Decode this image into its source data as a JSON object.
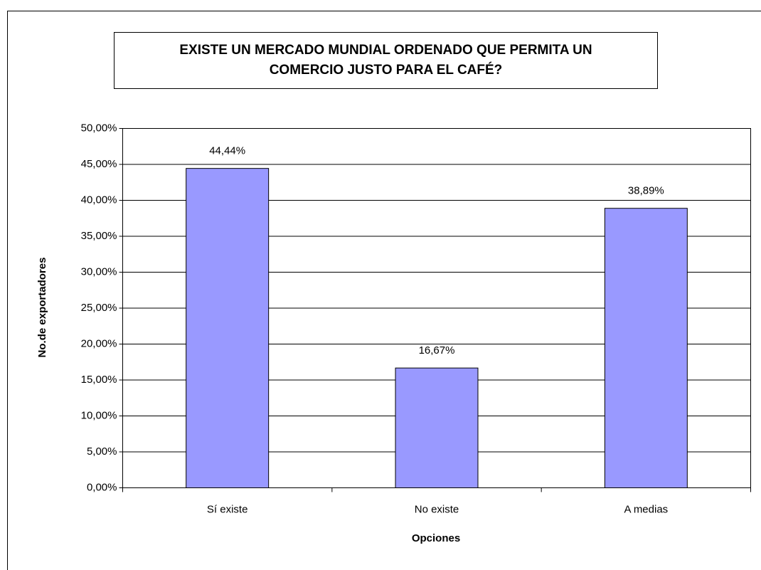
{
  "chart_data": {
    "type": "bar",
    "title": "EXISTE UN MERCADO MUNDIAL ORDENADO QUE PERMITA UN COMERCIO JUSTO PARA EL CAFÉ?",
    "x_label": "Opciones",
    "y_label": "No.de exportadores",
    "categories": [
      "Sí existe",
      "No existe",
      "A medias"
    ],
    "values": [
      44.44,
      16.67,
      38.89
    ],
    "value_labels": [
      "44,44%",
      "16,67%",
      "38,89%"
    ],
    "color": "#9999ff",
    "ylim": [
      0,
      50
    ],
    "yticks": [
      {
        "value": 0,
        "label": "0,00%"
      },
      {
        "value": 5,
        "label": "5,00%"
      },
      {
        "value": 10,
        "label": "10,00%"
      },
      {
        "value": 15,
        "label": "15,00%"
      },
      {
        "value": 20,
        "label": "20,00%"
      },
      {
        "value": 25,
        "label": "25,00%"
      },
      {
        "value": 30,
        "label": "30,00%"
      },
      {
        "value": 35,
        "label": "35,00%"
      },
      {
        "value": 40,
        "label": "40,00%"
      },
      {
        "value": 45,
        "label": "45,00%"
      },
      {
        "value": 50,
        "label": "50,00%"
      }
    ],
    "grid": true
  }
}
